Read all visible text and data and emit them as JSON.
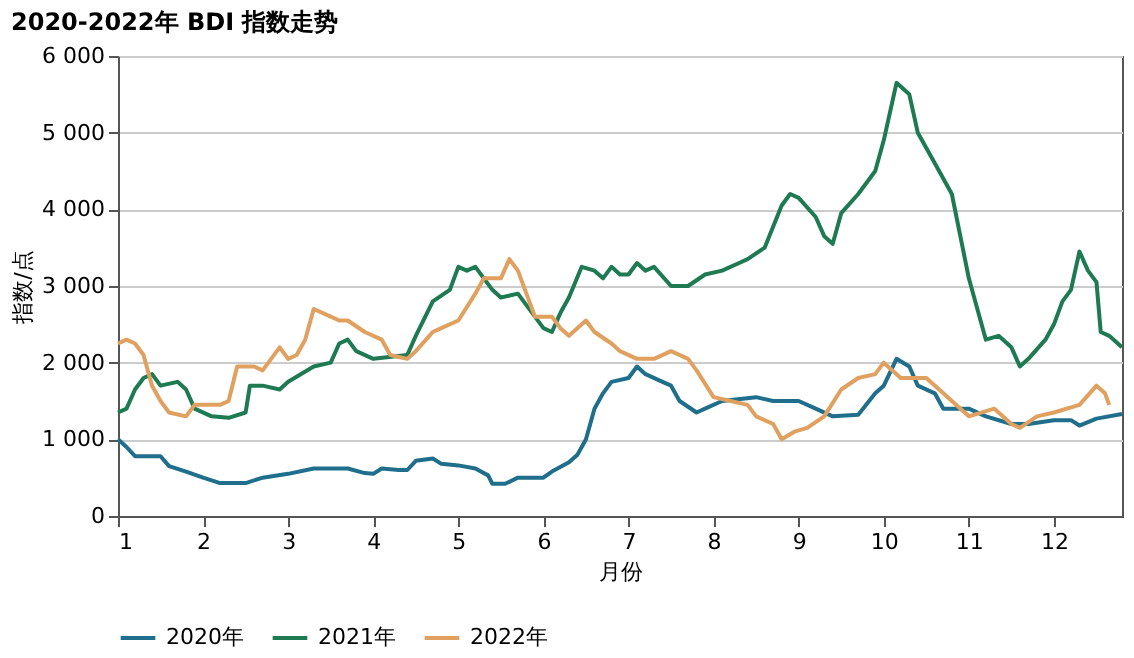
{
  "chart_data": {
    "type": "line",
    "title": "2020-2022年 BDI 指数走势",
    "xlabel": "月份",
    "ylabel": "指数/点",
    "xlim": [
      1,
      12.8
    ],
    "xticks": [
      1,
      2,
      3,
      4,
      5,
      6,
      7,
      8,
      9,
      10,
      11,
      12
    ],
    "ylim": [
      0,
      6000
    ],
    "yticks": [
      0,
      {
        "value": 1000,
        "label": "1 000"
      },
      {
        "value": 2000,
        "label": "2 000"
      },
      {
        "value": 3000,
        "label": "3 000"
      },
      {
        "value": 4000,
        "label": "4 000"
      },
      {
        "value": 5000,
        "label": "5 000"
      },
      {
        "value": 6000,
        "label": "6 000"
      }
    ],
    "grid": "y",
    "legend": "bottom",
    "line_style": "solid",
    "marker": "none",
    "series": [
      {
        "name": "2020年",
        "color": "#1f6e8c",
        "x": [
          1,
          1.1,
          1.2,
          1.5,
          1.6,
          1.8,
          2.0,
          2.2,
          2.5,
          2.7,
          3.0,
          3.3,
          3.7,
          3.9,
          4.0,
          4.1,
          4.3,
          4.4,
          4.5,
          4.7,
          4.8,
          5.0,
          5.2,
          5.35,
          5.4,
          5.55,
          5.7,
          6.0,
          6.1,
          6.3,
          6.4,
          6.5,
          6.6,
          6.7,
          6.8,
          7.0,
          7.1,
          7.2,
          7.4,
          7.5,
          7.6,
          7.8,
          7.9,
          8.1,
          8.5,
          8.7,
          9.0,
          9.2,
          9.4,
          9.7,
          9.9,
          10.0,
          10.15,
          10.3,
          10.4,
          10.6,
          10.7,
          11.0,
          11.2,
          11.5,
          11.7,
          12.0,
          12.2,
          12.3,
          12.5,
          12.8
        ],
        "values": [
          1000,
          900,
          780,
          780,
          650,
          580,
          500,
          430,
          430,
          500,
          550,
          620,
          620,
          560,
          550,
          620,
          600,
          600,
          720,
          750,
          680,
          660,
          620,
          530,
          420,
          420,
          500,
          500,
          580,
          700,
          800,
          1000,
          1400,
          1600,
          1750,
          1800,
          1950,
          1850,
          1750,
          1700,
          1500,
          1350,
          1400,
          1500,
          1550,
          1500,
          1500,
          1400,
          1300,
          1320,
          1600,
          1700,
          2050,
          1950,
          1700,
          1600,
          1400,
          1400,
          1300,
          1200,
          1200,
          1250,
          1250,
          1180,
          1270,
          1330
        ]
      },
      {
        "name": "2021年",
        "color": "#1e7a52",
        "x": [
          1,
          1.1,
          1.2,
          1.3,
          1.4,
          1.5,
          1.7,
          1.8,
          1.9,
          2.1,
          2.3,
          2.5,
          2.55,
          2.7,
          2.9,
          3.0,
          3.3,
          3.5,
          3.6,
          3.7,
          3.8,
          4.0,
          4.4,
          4.5,
          4.7,
          4.9,
          5.0,
          5.1,
          5.2,
          5.4,
          5.5,
          5.7,
          5.8,
          6.0,
          6.1,
          6.2,
          6.3,
          6.45,
          6.6,
          6.7,
          6.8,
          6.9,
          7.0,
          7.1,
          7.2,
          7.3,
          7.5,
          7.7,
          7.9,
          8.1,
          8.3,
          8.4,
          8.6,
          8.8,
          8.9,
          9.0,
          9.2,
          9.3,
          9.4,
          9.5,
          9.7,
          9.9,
          10.0,
          10.15,
          10.3,
          10.4,
          10.6,
          10.8,
          10.9,
          11.0,
          11.1,
          11.2,
          11.35,
          11.5,
          11.6,
          11.7,
          11.9,
          12.0,
          12.1,
          12.2,
          12.3,
          12.4,
          12.5,
          12.55,
          12.65,
          12.8
        ],
        "values": [
          1350,
          1400,
          1650,
          1800,
          1850,
          1700,
          1750,
          1650,
          1400,
          1300,
          1280,
          1350,
          1700,
          1700,
          1650,
          1750,
          1950,
          2000,
          2250,
          2300,
          2150,
          2050,
          2100,
          2350,
          2800,
          2950,
          3250,
          3200,
          3250,
          2950,
          2850,
          2900,
          2750,
          2450,
          2400,
          2650,
          2850,
          3250,
          3200,
          3100,
          3250,
          3150,
          3150,
          3300,
          3200,
          3250,
          3000,
          3000,
          3150,
          3200,
          3300,
          3350,
          3500,
          4050,
          4200,
          4150,
          3900,
          3650,
          3550,
          3950,
          4200,
          4500,
          4900,
          5650,
          5500,
          5000,
          4600,
          4200,
          3650,
          3100,
          2700,
          2300,
          2350,
          2200,
          1950,
          2050,
          2300,
          2500,
          2800,
          2950,
          3450,
          3200,
          3050,
          2400,
          2350,
          2200
        ]
      },
      {
        "name": "2022年",
        "color": "#e0a060",
        "x": [
          1,
          1.1,
          1.2,
          1.3,
          1.4,
          1.5,
          1.6,
          1.8,
          1.9,
          2.2,
          2.3,
          2.4,
          2.6,
          2.7,
          2.9,
          3.0,
          3.1,
          3.2,
          3.3,
          3.5,
          3.6,
          3.7,
          3.9,
          4.1,
          4.2,
          4.4,
          4.5,
          4.7,
          4.8,
          5.0,
          5.2,
          5.3,
          5.5,
          5.6,
          5.7,
          5.9,
          6.1,
          6.2,
          6.3,
          6.5,
          6.6,
          6.8,
          6.9,
          7.1,
          7.3,
          7.5,
          7.7,
          7.8,
          8.0,
          8.2,
          8.4,
          8.5,
          8.7,
          8.8,
          8.95,
          9.1,
          9.3,
          9.5,
          9.7,
          9.9,
          10.0,
          10.2,
          10.5,
          10.7,
          10.8,
          11.0,
          11.3,
          11.5,
          11.6,
          11.8,
          12.0,
          12.3,
          12.5,
          12.6,
          12.65
        ],
        "values": [
          2250,
          2300,
          2250,
          2100,
          1700,
          1500,
          1350,
          1300,
          1450,
          1450,
          1500,
          1950,
          1950,
          1900,
          2200,
          2050,
          2100,
          2300,
          2700,
          2600,
          2550,
          2550,
          2400,
          2300,
          2100,
          2050,
          2150,
          2400,
          2450,
          2550,
          2900,
          3100,
          3100,
          3350,
          3200,
          2600,
          2600,
          2450,
          2350,
          2550,
          2400,
          2250,
          2150,
          2050,
          2050,
          2150,
          2050,
          1900,
          1550,
          1500,
          1450,
          1300,
          1200,
          1000,
          1100,
          1150,
          1300,
          1650,
          1800,
          1850,
          2000,
          1800,
          1800,
          1600,
          1500,
          1300,
          1400,
          1200,
          1150,
          1300,
          1350,
          1450,
          1700,
          1600,
          1450
        ]
      }
    ]
  }
}
